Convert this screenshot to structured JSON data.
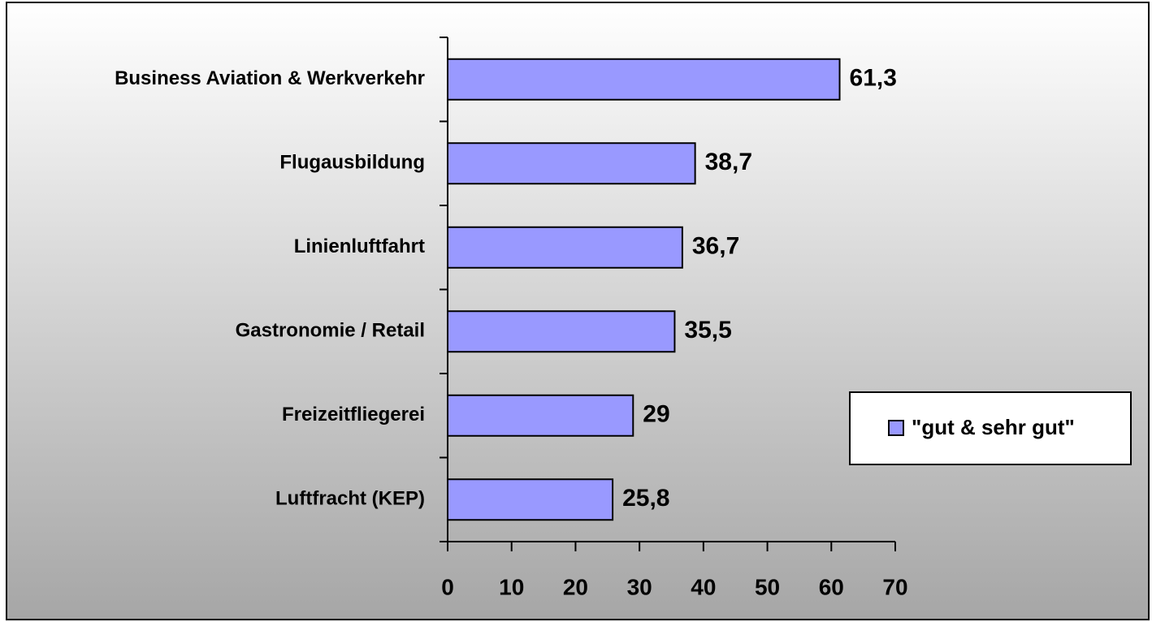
{
  "chart_data": {
    "type": "bar",
    "orientation": "horizontal",
    "categories": [
      "Business Aviation & Werkverkehr",
      "Flugausbildung",
      "Linienluftfahrt",
      "Gastronomie / Retail",
      "Freizeitfliegerei",
      "Luftfracht (KEP)"
    ],
    "series": [
      {
        "name": "\"gut & sehr gut\"",
        "color": "#9999ff",
        "values": [
          61.3,
          38.7,
          36.7,
          35.5,
          29,
          25.8
        ],
        "value_labels": [
          "61,3",
          "38,7",
          "36,7",
          "35,5",
          "29",
          "25,8"
        ]
      }
    ],
    "xlim": [
      0,
      70
    ],
    "xticks": [
      0,
      10,
      20,
      30,
      40,
      50,
      60,
      70
    ],
    "legend": "right"
  }
}
